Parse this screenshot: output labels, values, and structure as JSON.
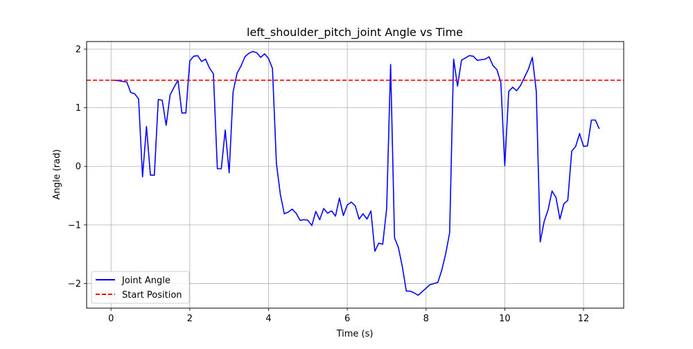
{
  "chart_data": {
    "type": "line",
    "title": "left_shoulder_pitch_joint Angle vs Time",
    "xlabel": "Time (s)",
    "ylabel": "Angle (rad)",
    "xlim": [
      -0.62,
      13.02
    ],
    "ylim": [
      -2.42,
      2.13
    ],
    "grid": true,
    "legend_position": "lower left",
    "x_ticks": [
      0,
      2,
      4,
      6,
      8,
      10,
      12
    ],
    "x_tick_labels": [
      "0",
      "2",
      "4",
      "6",
      "8",
      "10",
      "12"
    ],
    "y_ticks": [
      -2,
      -1,
      0,
      1,
      2
    ],
    "y_tick_labels": [
      "−2",
      "−1",
      "0",
      "1",
      "2"
    ],
    "series": [
      {
        "name": "Joint Angle",
        "color": "#0000ff",
        "style": "solid",
        "x": [
          0.0,
          0.1,
          0.2,
          0.3,
          0.4,
          0.5,
          0.6,
          0.7,
          0.8,
          0.9,
          1.0,
          1.1,
          1.2,
          1.3,
          1.4,
          1.5,
          1.6,
          1.7,
          1.8,
          1.9,
          2.0,
          2.1,
          2.2,
          2.3,
          2.4,
          2.5,
          2.6,
          2.7,
          2.8,
          2.9,
          3.0,
          3.1,
          3.2,
          3.3,
          3.4,
          3.5,
          3.6,
          3.7,
          3.8,
          3.9,
          4.0,
          4.1,
          4.2,
          4.3,
          4.4,
          4.5,
          4.6,
          4.7,
          4.8,
          4.9,
          5.0,
          5.1,
          5.2,
          5.3,
          5.4,
          5.5,
          5.6,
          5.7,
          5.8,
          5.9,
          6.0,
          6.1,
          6.2,
          6.3,
          6.4,
          6.5,
          6.6,
          6.7,
          6.8,
          6.9,
          7.0,
          7.1,
          7.2,
          7.3,
          7.4,
          7.5,
          7.6,
          7.7,
          7.8,
          7.9,
          8.0,
          8.1,
          8.2,
          8.3,
          8.4,
          8.5,
          8.6,
          8.7,
          8.8,
          8.9,
          9.0,
          9.1,
          9.2,
          9.3,
          9.4,
          9.5,
          9.6,
          9.7,
          9.8,
          9.9,
          10.0,
          10.1,
          10.2,
          10.3,
          10.4,
          10.5,
          10.6,
          10.7,
          10.8,
          10.9,
          11.0,
          11.1,
          11.2,
          11.3,
          11.4,
          11.5,
          11.6,
          11.7,
          11.8,
          11.9,
          12.0,
          12.1,
          12.2,
          12.3,
          12.4
        ],
        "y": [
          1.47,
          1.47,
          1.46,
          1.45,
          1.44,
          1.26,
          1.24,
          1.15,
          -0.18,
          0.68,
          -0.15,
          -0.15,
          1.14,
          1.13,
          0.7,
          1.22,
          1.35,
          1.47,
          0.91,
          0.91,
          1.8,
          1.88,
          1.89,
          1.79,
          1.83,
          1.68,
          1.58,
          -0.04,
          -0.04,
          0.62,
          -0.11,
          1.27,
          1.59,
          1.71,
          1.87,
          1.93,
          1.96,
          1.94,
          1.86,
          1.92,
          1.84,
          1.67,
          0.05,
          -0.48,
          -0.81,
          -0.78,
          -0.73,
          -0.8,
          -0.92,
          -0.91,
          -0.92,
          -1.01,
          -0.77,
          -0.91,
          -0.72,
          -0.8,
          -0.76,
          -0.85,
          -0.54,
          -0.84,
          -0.66,
          -0.61,
          -0.67,
          -0.9,
          -0.81,
          -0.9,
          -0.76,
          -1.45,
          -1.31,
          -1.33,
          -0.72,
          1.74,
          -1.22,
          -1.39,
          -1.72,
          -2.13,
          -2.13,
          -2.16,
          -2.2,
          -2.14,
          -2.08,
          -2.02,
          -2.0,
          -1.98,
          -1.77,
          -1.49,
          -1.13,
          1.83,
          1.37,
          1.81,
          1.85,
          1.89,
          1.88,
          1.81,
          1.82,
          1.83,
          1.87,
          1.72,
          1.65,
          1.43,
          0.01,
          1.28,
          1.35,
          1.29,
          1.38,
          1.52,
          1.66,
          1.86,
          1.28,
          -1.29,
          -0.94,
          -0.74,
          -0.42,
          -0.53,
          -0.9,
          -0.64,
          -0.58,
          0.26,
          0.34,
          0.56,
          0.34,
          0.35,
          0.79,
          0.79,
          0.64
        ]
      },
      {
        "name": "Start Position",
        "color": "#ff0000",
        "style": "dashed",
        "y_constant": 1.47
      }
    ]
  }
}
